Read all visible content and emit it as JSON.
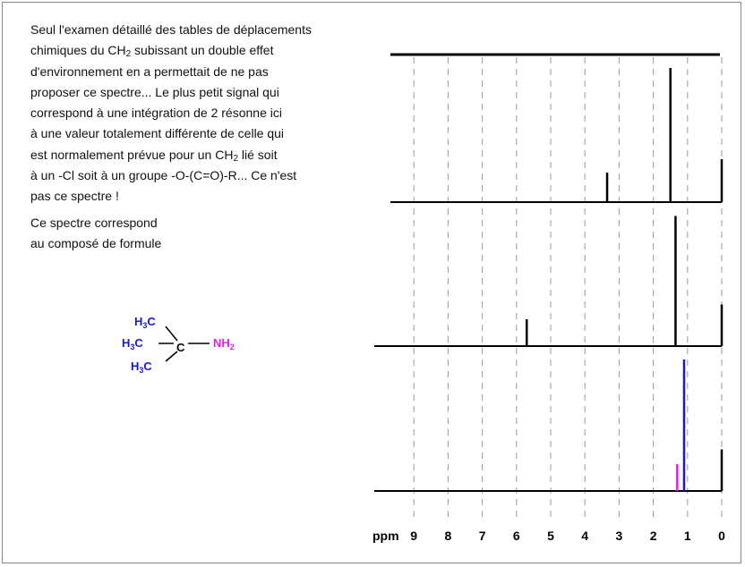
{
  "description_lines": [
    "Seul l'examen détaillé des tables de déplacements",
    "chimiques du CH|2| subissant un double effet",
    "d'environnement en a permettait de ne pas",
    "proposer ce spectre... Le plus petit signal qui",
    "correspond à une intégration de 2 résonne ici",
    "à une valeur totalement différente de celle qui",
    "est normalement prévue pour un CH|2| lié soit",
    "à un -Cl soit à un groupe -O-(C=O)-R... Ce n'est",
    "pas ce spectre !"
  ],
  "conclusion_lines": [
    "Ce spectre correspond",
    "au composé de formule"
  ],
  "molecule": {
    "methyl_label": "H3C",
    "central_atom": "C",
    "amine_label": "NH2",
    "methyl_color": "#1a1acc",
    "amine_color": "#e020e0"
  },
  "axis": {
    "unit_label": "ppm",
    "ticks": [
      "9",
      "8",
      "7",
      "6",
      "5",
      "4",
      "3",
      "2",
      "1",
      "0"
    ]
  },
  "spectra": [
    {
      "name": "spectrum-1",
      "peaks": [
        {
          "ppm": 3.35,
          "height": 0.22,
          "color": "#000000"
        },
        {
          "ppm": 1.5,
          "height": 1.0,
          "color": "#000000"
        },
        {
          "ppm": 0.0,
          "height": 0.32,
          "color": "#000000"
        }
      ]
    },
    {
      "name": "spectrum-2",
      "peaks": [
        {
          "ppm": 5.7,
          "height": 0.2,
          "color": "#000000"
        },
        {
          "ppm": 1.35,
          "height": 0.97,
          "color": "#000000"
        },
        {
          "ppm": 0.0,
          "height": 0.31,
          "color": "#000000"
        }
      ]
    },
    {
      "name": "spectrum-3",
      "peaks": [
        {
          "ppm": 1.3,
          "height": 0.2,
          "color": "#e020e0"
        },
        {
          "ppm": 1.1,
          "height": 0.98,
          "color": "#1a1acc"
        },
        {
          "ppm": 0.0,
          "height": 0.31,
          "color": "#000000"
        }
      ]
    }
  ]
}
